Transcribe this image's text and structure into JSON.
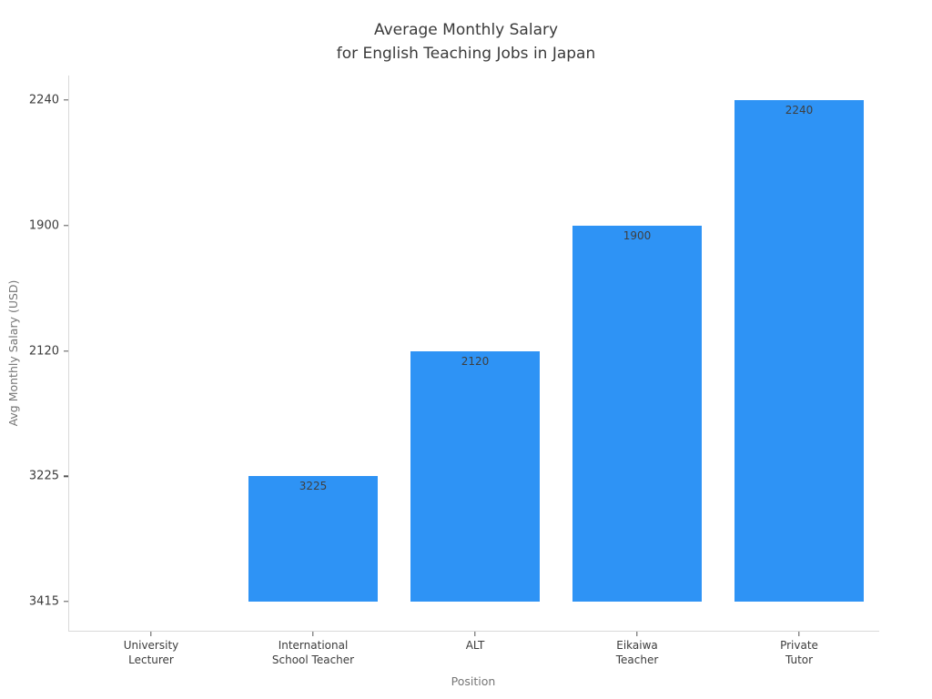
{
  "page": {
    "background": "#ffffff"
  },
  "chart_data": {
    "type": "bar",
    "title": "Average Monthly Salary\nfor English Teaching Jobs in Japan",
    "title_lines": [
      "Average Monthly Salary",
      "for English Teaching Jobs in Japan"
    ],
    "xlabel": "Position",
    "ylabel": "Avg Monthly Salary (USD)",
    "categories": [
      "University Lecturer",
      "International School Teacher",
      "ALT",
      "Eikaiwa Teacher",
      "Private Tutor"
    ],
    "x_tick_label_lines": [
      [
        "University",
        "Lecturer"
      ],
      [
        "International",
        "School Teacher"
      ],
      [
        "ALT"
      ],
      [
        "Eikaiwa",
        "Teacher"
      ],
      [
        "Private",
        "Tutor"
      ]
    ],
    "values": [
      3415,
      3225,
      2120,
      1900,
      2240
    ],
    "bar_value_labels": [
      "",
      "3225",
      "2120",
      "1900",
      "2240"
    ],
    "y_tick_labels_bottom_to_top": [
      "3415",
      "3225",
      "2120",
      "1900",
      "2240"
    ],
    "bar_height_units": [
      0,
      1,
      2,
      3,
      4
    ],
    "ylim_units": [
      -0.22,
      4.42
    ],
    "grid": false,
    "legend_position": "none",
    "colors": {
      "bar": "#2E93F5",
      "title": "#3a3a3a",
      "tick_label": "#3c3c3c",
      "bar_label": "#3f3f3f",
      "axis_label": "#757575",
      "spine": "#d9d9d9",
      "tick_mark": "#555555"
    }
  }
}
